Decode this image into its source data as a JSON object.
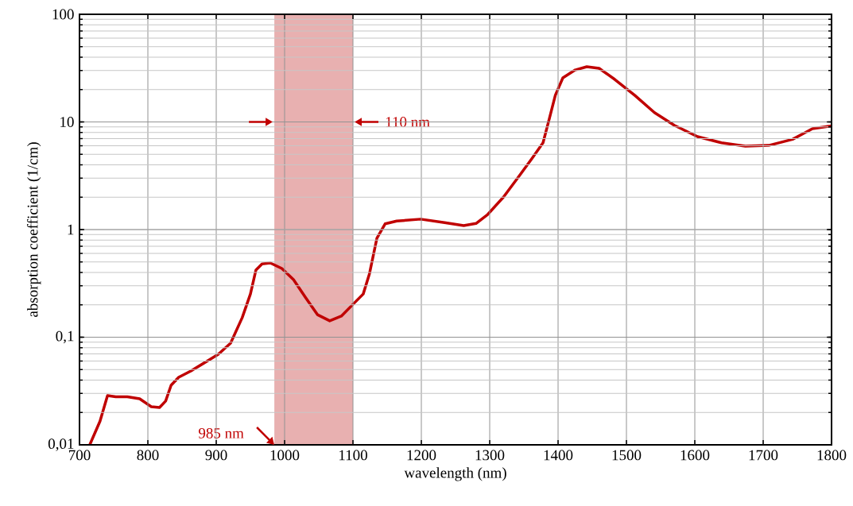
{
  "chart_data": {
    "type": "line",
    "xlabel": "wavelength (nm)",
    "ylabel": "absorption coefficient (1/cm)",
    "x": [
      715,
      730,
      741,
      753,
      770,
      788,
      805,
      817,
      826,
      834,
      845,
      863,
      886,
      903,
      921,
      938,
      950,
      958,
      967,
      979,
      996,
      1013,
      1031,
      1048,
      1066,
      1083,
      1100,
      1115,
      1124,
      1135,
      1147,
      1164,
      1199,
      1234,
      1262,
      1280,
      1297,
      1320,
      1344,
      1361,
      1378,
      1387,
      1396,
      1407,
      1425,
      1442,
      1460,
      1483,
      1512,
      1541,
      1570,
      1604,
      1639,
      1674,
      1708,
      1743,
      1772,
      1800
    ],
    "series": [
      {
        "color": "#c00000",
        "values": [
          0.01,
          0.0166,
          0.0287,
          0.028,
          0.028,
          0.0268,
          0.0226,
          0.0222,
          0.0255,
          0.0358,
          0.0424,
          0.0486,
          0.0596,
          0.0694,
          0.088,
          0.152,
          0.252,
          0.42,
          0.48,
          0.49,
          0.435,
          0.343,
          0.232,
          0.162,
          0.142,
          0.157,
          0.202,
          0.252,
          0.386,
          0.83,
          1.13,
          1.2,
          1.25,
          1.16,
          1.09,
          1.14,
          1.38,
          2.0,
          3.2,
          4.5,
          6.4,
          10.6,
          17.7,
          25.7,
          30.4,
          32.6,
          31.5,
          24.8,
          17.7,
          12.2,
          9.3,
          7.3,
          6.4,
          5.96,
          6.05,
          6.9,
          8.65,
          9.2
        ]
      }
    ],
    "xlim": [
      700,
      1800
    ],
    "ylim": [
      0.01,
      100
    ],
    "xticks": [
      700,
      800,
      900,
      1000,
      1100,
      1200,
      1300,
      1400,
      1500,
      1600,
      1700,
      1800
    ],
    "yticks": [
      {
        "value": 0.01,
        "label": "0,01"
      },
      {
        "value": 0.1,
        "label": "0,1"
      },
      1,
      10,
      100
    ],
    "log": true,
    "grid": true,
    "marker": "none",
    "line_style": "solid",
    "bands": [
      {
        "axis": "x",
        "from": 985,
        "to": 1100,
        "color": "#e8b0b0"
      }
    ],
    "annotations": [
      {
        "text": "985 nm",
        "x": 985,
        "y": 0.01
      },
      {
        "text": "110 nm",
        "x": 1100,
        "y": 10
      }
    ]
  }
}
